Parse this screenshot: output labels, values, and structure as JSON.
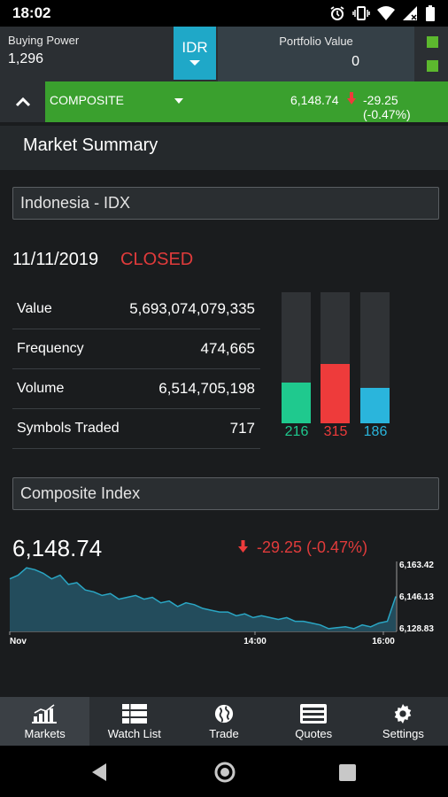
{
  "status": {
    "time": "18:02"
  },
  "header": {
    "buying_power_label": "Buying Power",
    "buying_power_value": "1,296",
    "currency": "IDR",
    "portfolio_label": "Portfolio Value",
    "portfolio_value": "0",
    "indicator_color": "#5cb82e"
  },
  "ticker": {
    "name": "COMPOSITE",
    "price": "6,148.74",
    "change": "-29.25 (-0.47%)",
    "bar_color": "#3aa02e"
  },
  "market_summary": {
    "title": "Market Summary",
    "exchange": "Indonesia - IDX",
    "date": "11/11/2019",
    "status": "CLOSED",
    "stats": [
      {
        "label": "Value",
        "value": "5,693,074,079,335"
      },
      {
        "label": "Frequency",
        "value": "474,665"
      },
      {
        "label": "Volume",
        "value": "6,514,705,198"
      },
      {
        "label": "Symbols Traded",
        "value": "717"
      }
    ],
    "breadth": [
      {
        "name": "advancing",
        "value": "216",
        "color": "#1fc98e",
        "level": 0.31
      },
      {
        "name": "declining",
        "value": "315",
        "color": "#ee3b3b",
        "level": 0.45
      },
      {
        "name": "unchanged",
        "value": "186",
        "color": "#2ab5dc",
        "level": 0.27
      }
    ]
  },
  "composite": {
    "section_title": "Composite Index",
    "value": "6,148.74",
    "change": "-29.25 (-0.47%)"
  },
  "chart_data": {
    "type": "area",
    "x_tick_labels": [
      "Nov",
      "14:00",
      "16:00"
    ],
    "y_tick_labels": [
      "6,163.42",
      "6,146.13",
      "6,128.83"
    ],
    "y_ticks": [
      6163.42,
      6146.13,
      6128.83
    ],
    "ylim": [
      6127.5,
      6164.5
    ],
    "values": [
      6156,
      6158,
      6162,
      6161,
      6159,
      6156,
      6158,
      6153,
      6154,
      6150,
      6149,
      6147,
      6148,
      6145,
      6146,
      6147,
      6145,
      6146,
      6143,
      6144,
      6141,
      6143,
      6142,
      6140,
      6139,
      6138,
      6138,
      6136,
      6137,
      6135,
      6136,
      6135,
      6134,
      6135,
      6133,
      6133,
      6132,
      6131,
      6129,
      6129.5,
      6130,
      6129,
      6131,
      6130,
      6132,
      6133,
      6146.5
    ],
    "color": "#2aa6c4"
  },
  "tabs": [
    {
      "label": "Markets",
      "icon": "bar-chart-icon",
      "active": true
    },
    {
      "label": "Watch List",
      "icon": "list-icon",
      "active": false
    },
    {
      "label": "Trade",
      "icon": "globe-icon",
      "active": false
    },
    {
      "label": "Quotes",
      "icon": "quotes-icon",
      "active": false
    },
    {
      "label": "Settings",
      "icon": "gear-icon",
      "active": false
    }
  ]
}
